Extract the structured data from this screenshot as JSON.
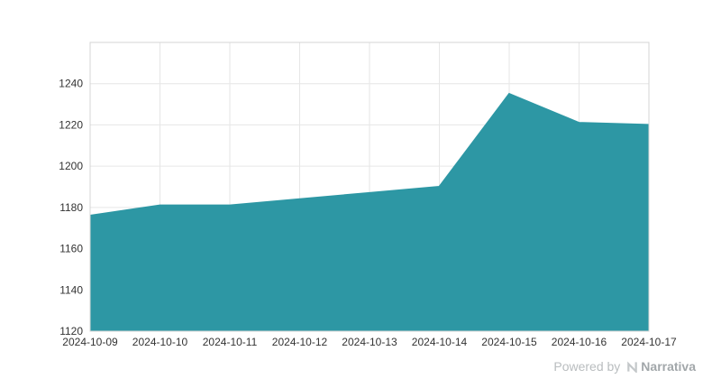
{
  "chart_data": {
    "type": "area",
    "title": "",
    "xlabel": "",
    "ylabel": "",
    "x": [
      "2024-10-09",
      "2024-10-10",
      "2024-10-11",
      "2024-10-12",
      "2024-10-13",
      "2024-10-14",
      "2024-10-15",
      "2024-10-16",
      "2024-10-17"
    ],
    "values": [
      1176,
      1181,
      1181,
      1184,
      1187,
      1190,
      1235,
      1221,
      1220
    ],
    "ylim": [
      1120,
      1260
    ],
    "yticks": [
      1120,
      1140,
      1160,
      1180,
      1200,
      1220,
      1240
    ],
    "grid": true,
    "legend": false,
    "colors": {
      "area_fill": "#2d97a4",
      "area_stroke": "#2d97a4",
      "grid_line": "#e6e6e6",
      "plot_border": "#d4d4d4",
      "tick_label": "#333333",
      "background": "#ffffff"
    }
  },
  "footer": {
    "powered_by": "Powered by",
    "brand": "Narrativa"
  }
}
